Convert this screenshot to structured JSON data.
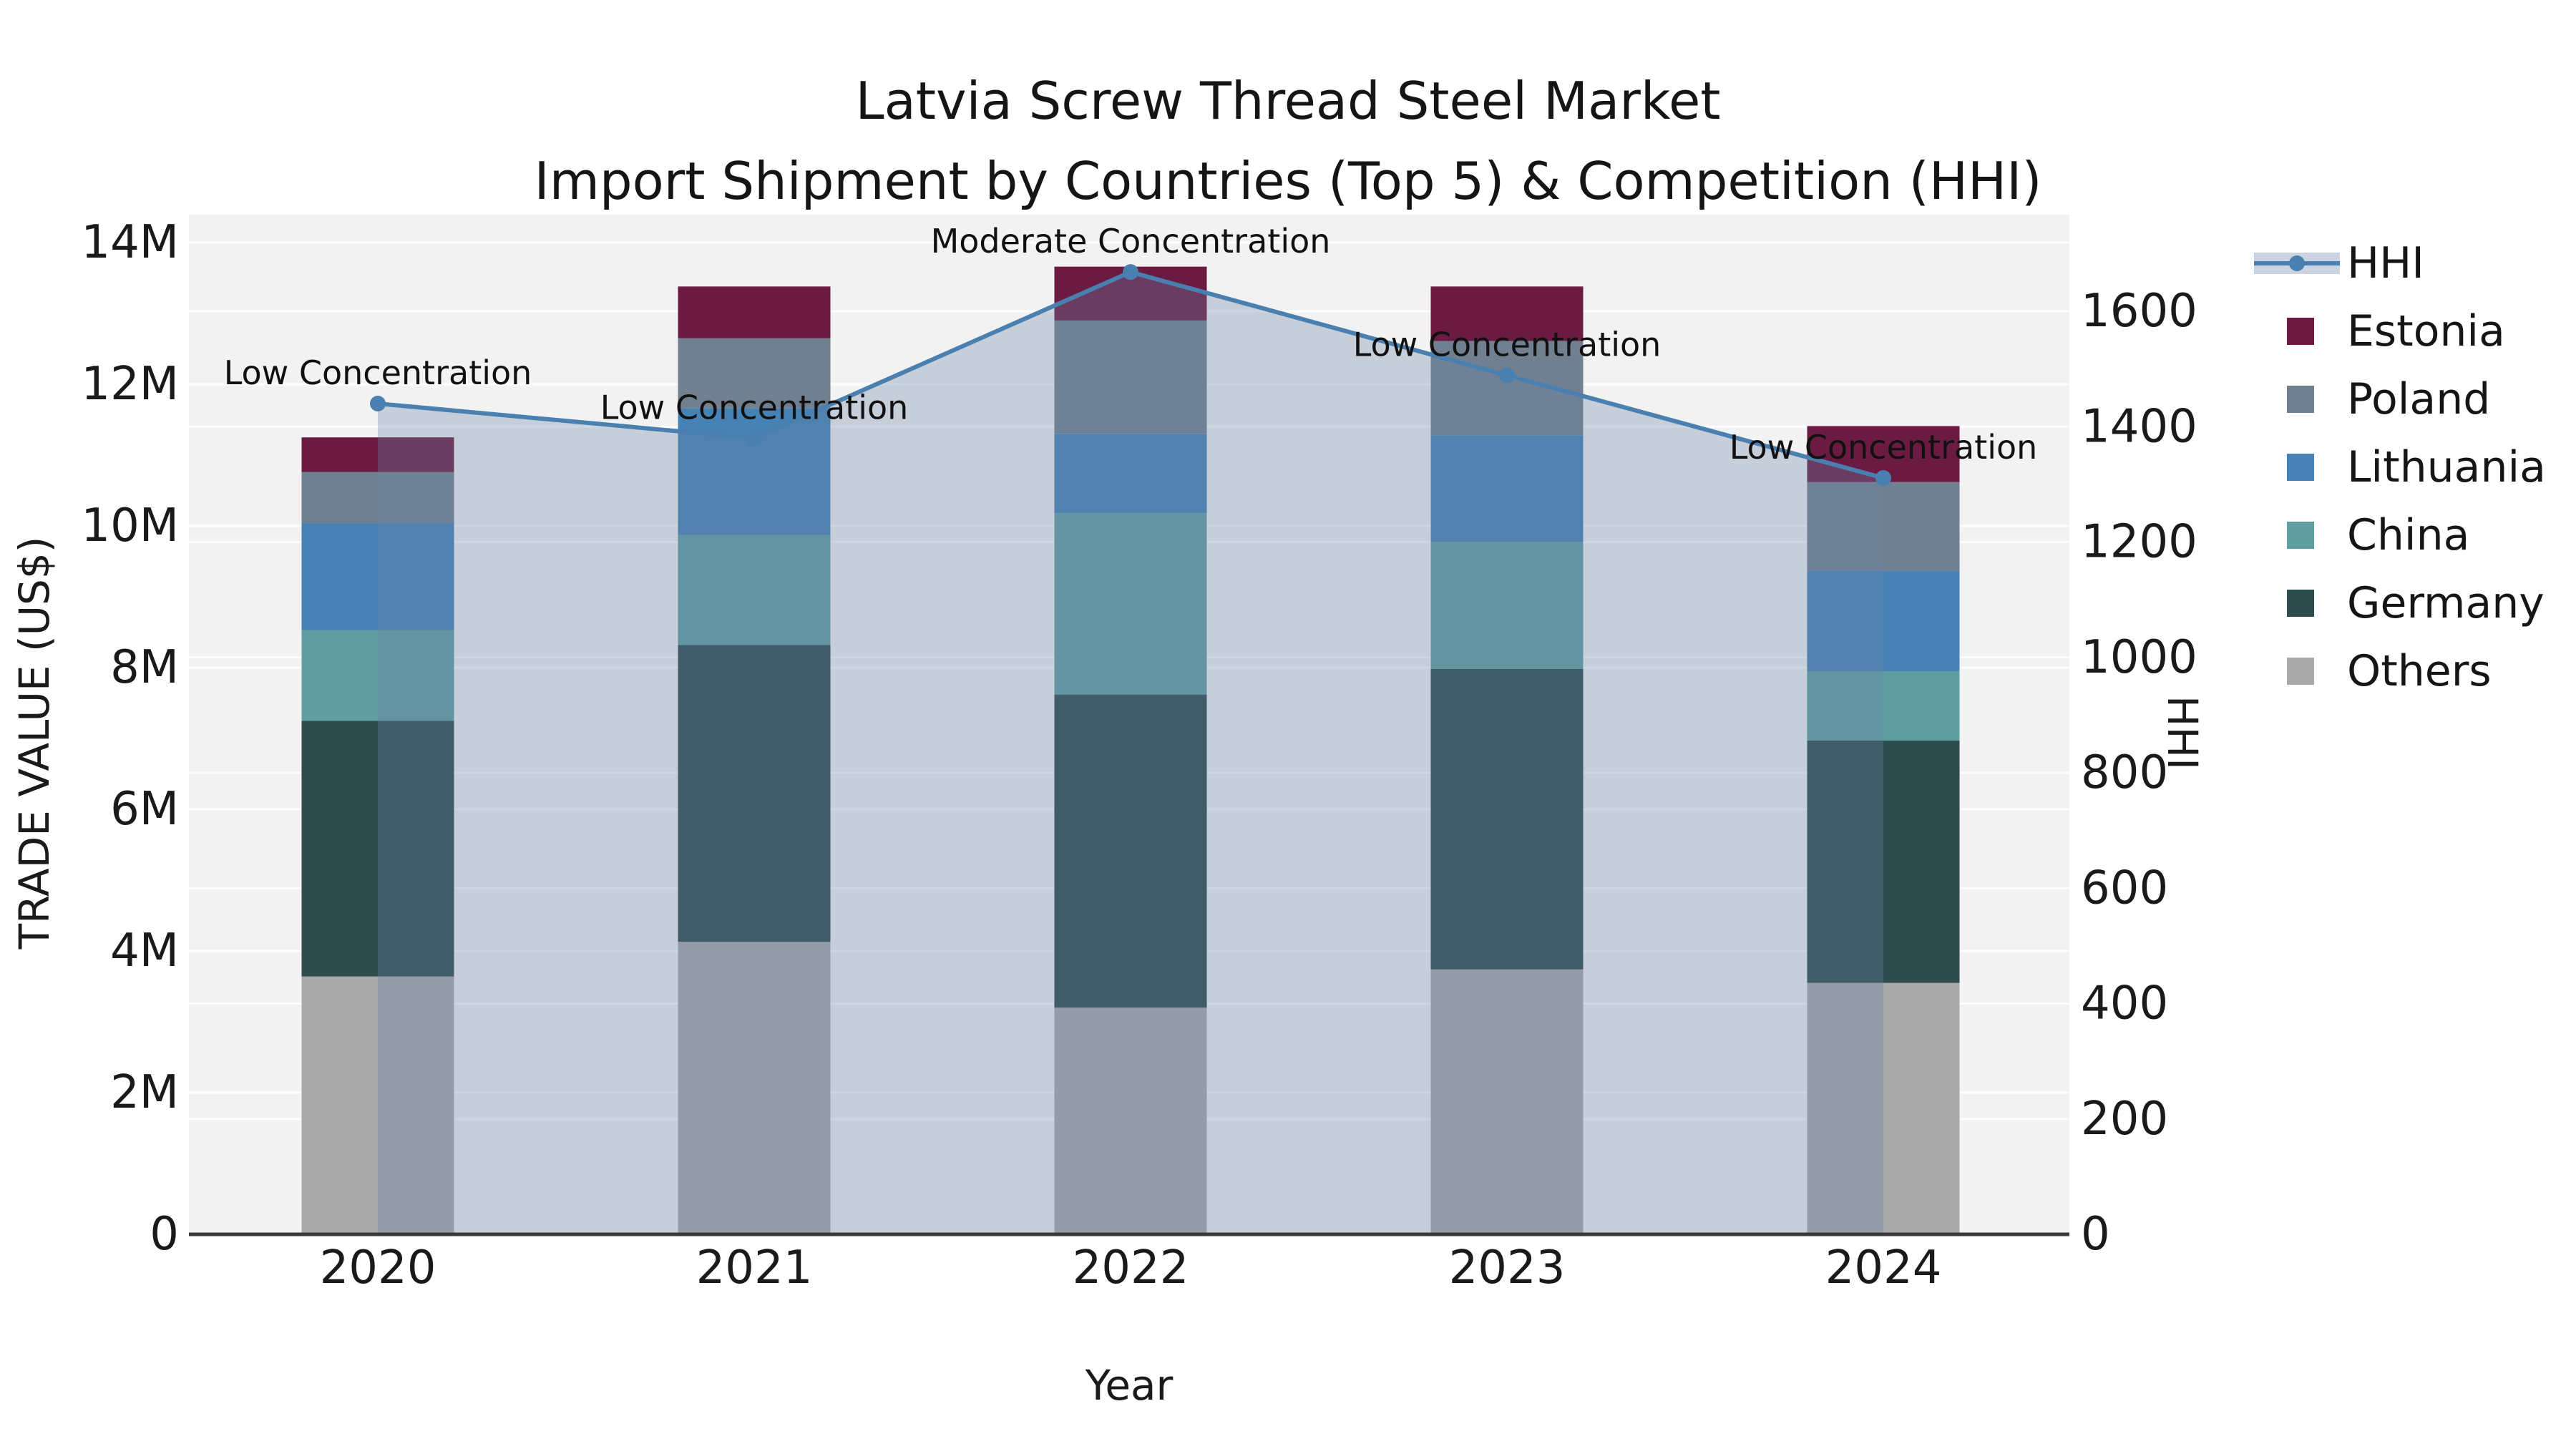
{
  "title": {
    "line1": "Latvia Screw Thread Steel Market",
    "line2": "Import Shipment by Countries (Top 5) & Competition (HHI)"
  },
  "axes": {
    "x_label": "Year",
    "y_left_label": "TRADE VALUE (US$)",
    "y_right_label": "HHI",
    "y_left_ticks": [
      {
        "value": 0,
        "label": "0"
      },
      {
        "value": 2,
        "label": "2M"
      },
      {
        "value": 4,
        "label": "4M"
      },
      {
        "value": 6,
        "label": "6M"
      },
      {
        "value": 8,
        "label": "8M"
      },
      {
        "value": 10,
        "label": "10M"
      },
      {
        "value": 12,
        "label": "12M"
      },
      {
        "value": 14,
        "label": "14M"
      }
    ],
    "y_right_ticks": [
      {
        "value": 0,
        "label": "0"
      },
      {
        "value": 200,
        "label": "200"
      },
      {
        "value": 400,
        "label": "400"
      },
      {
        "value": 600,
        "label": "600"
      },
      {
        "value": 800,
        "label": "800"
      },
      {
        "value": 1000,
        "label": "1000"
      },
      {
        "value": 1200,
        "label": "1200"
      },
      {
        "value": 1400,
        "label": "1400"
      },
      {
        "value": 1600,
        "label": "1600"
      }
    ]
  },
  "chart_data": {
    "type": "combo: stacked bar (left axis) + line (right axis)",
    "categories": [
      "2020",
      "2021",
      "2022",
      "2023",
      "2024"
    ],
    "bar_value_unit": "million US$",
    "series": [
      {
        "name": "Others",
        "color": "#a9a9a9",
        "values": [
          3.64,
          4.13,
          3.2,
          3.74,
          3.55
        ]
      },
      {
        "name": "Germany",
        "color": "#2e4b4d",
        "values": [
          3.61,
          4.19,
          4.42,
          4.24,
          3.42
        ]
      },
      {
        "name": "China",
        "color": "#5f9ea0",
        "values": [
          1.28,
          1.55,
          2.56,
          1.79,
          0.98
        ]
      },
      {
        "name": "Lithuania",
        "color": "#4682b4",
        "values": [
          1.51,
          1.79,
          1.12,
          1.51,
          1.42
        ]
      },
      {
        "name": "Poland",
        "color": "#718090",
        "values": [
          0.72,
          0.99,
          1.6,
          1.33,
          1.25
        ]
      },
      {
        "name": "Estonia",
        "color": "#6b1b41",
        "values": [
          0.49,
          0.73,
          0.76,
          0.77,
          0.79
        ]
      }
    ],
    "bar_totals": [
      11.25,
      13.38,
      13.66,
      13.38,
      11.41
    ],
    "line": {
      "name": "HHI",
      "color": "#4a80b0",
      "area_fill_color": "rgba(105,130,165,0.32)",
      "values": [
        1440,
        1380,
        1668,
        1489,
        1311
      ]
    },
    "annotations": [
      {
        "year": "2020",
        "text": "Low Concentration"
      },
      {
        "year": "2021",
        "text": "Low Concentration"
      },
      {
        "year": "2022",
        "text": "Moderate Concentration"
      },
      {
        "year": "2023",
        "text": "Low Concentration"
      },
      {
        "year": "2024",
        "text": "Low Concentration"
      }
    ],
    "ylim_left_millions": [
      0,
      14.39
    ],
    "ylim_right": [
      0,
      1767
    ],
    "grid": "horizontal white gridlines for both axes",
    "legend_position": "right, outside plot"
  },
  "legend": {
    "items": [
      {
        "name": "HHI",
        "type": "line"
      },
      {
        "name": "Estonia",
        "type": "swatch",
        "color": "#6b1b41"
      },
      {
        "name": "Poland",
        "type": "swatch",
        "color": "#718090"
      },
      {
        "name": "Lithuania",
        "type": "swatch",
        "color": "#4682b4"
      },
      {
        "name": "China",
        "type": "swatch",
        "color": "#5f9ea0"
      },
      {
        "name": "Germany",
        "type": "swatch",
        "color": "#2e4b4d"
      },
      {
        "name": "Others",
        "type": "swatch",
        "color": "#a9a9a9"
      }
    ]
  },
  "colors": {
    "figure_background": "#ffffff",
    "plot_background": "#f2f2f2",
    "gridline": "#ffffff",
    "axis_line": "#3a3a3a",
    "text": "#1a1a1a"
  }
}
